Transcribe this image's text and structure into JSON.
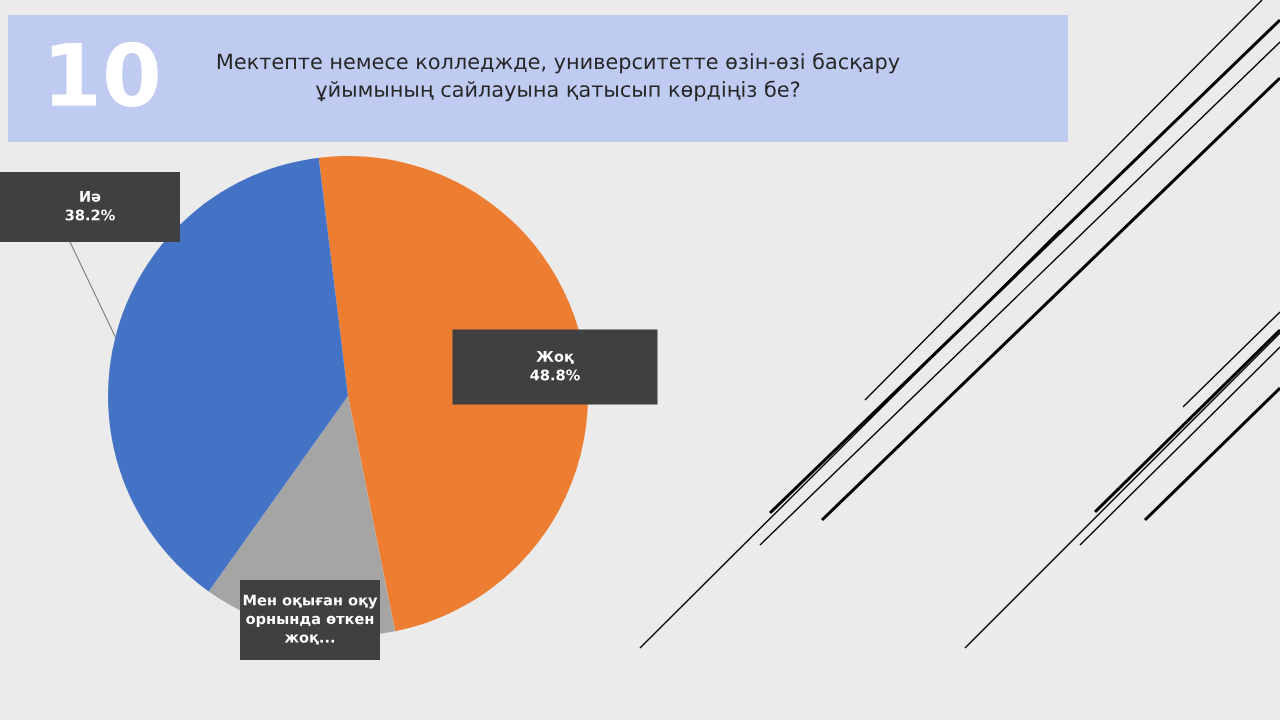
{
  "chart_data": {
    "type": "pie",
    "title": "Мектепте немесе колледжде, университетте өзін-өзі басқару\nұйымының сайлауына қатысып көрдіңіз бе?",
    "categories": [
      "Жоқ",
      "Мен оқыған оқу\nорнында өткен\nжоқ...",
      "Иә"
    ],
    "values": [
      48.8,
      13,
      38.2
    ],
    "colors": [
      "#ed7d31",
      "#a5a5a5",
      "#4472c4"
    ],
    "value_labels": [
      "48.8%",
      null,
      "38.2%"
    ],
    "annotations": [
      "10"
    ]
  }
}
